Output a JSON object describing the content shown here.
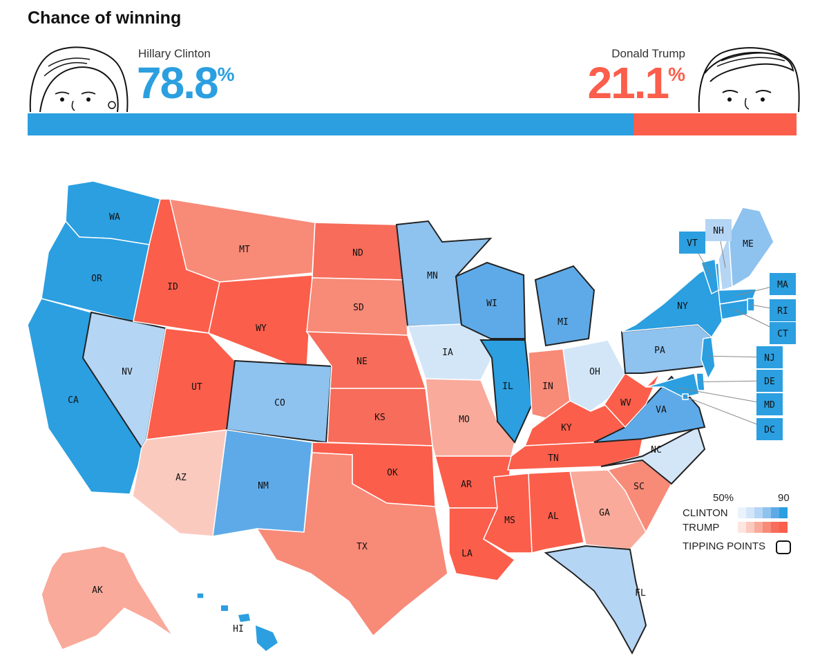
{
  "header": {
    "title": "Chance of winning"
  },
  "candidates": {
    "clinton": {
      "name": "Hillary Clinton",
      "pct": "78.8",
      "pct_sign": "%",
      "share": 0.788,
      "color": "#2b9fe0"
    },
    "trump": {
      "name": "Donald Trump",
      "pct": "21.1",
      "pct_sign": "%",
      "share": 0.211,
      "color": "#fb5e4b"
    }
  },
  "legend": {
    "tick_low": "50%",
    "tick_high": "90",
    "clinton_label": "CLINTON",
    "trump_label": "TRUMP",
    "tipping_label": "TIPPING POINTS",
    "clinton_scale": [
      "#eaf3fc",
      "#d3e6f8",
      "#b5d5f4",
      "#8ec2ef",
      "#5eaae8",
      "#2b9fe0"
    ],
    "trump_scale": [
      "#fde5e0",
      "#fbcabf",
      "#f9aa9b",
      "#f88a78",
      "#f76c5a",
      "#fb5e4b"
    ]
  },
  "states": [
    {
      "abbr": "WA",
      "shade": "c5"
    },
    {
      "abbr": "OR",
      "shade": "c5"
    },
    {
      "abbr": "CA",
      "shade": "c5"
    },
    {
      "abbr": "NV",
      "shade": "c2",
      "tipping": true
    },
    {
      "abbr": "ID",
      "shade": "t5"
    },
    {
      "abbr": "MT",
      "shade": "t3"
    },
    {
      "abbr": "WY",
      "shade": "t5"
    },
    {
      "abbr": "UT",
      "shade": "t5"
    },
    {
      "abbr": "AZ",
      "shade": "t1"
    },
    {
      "abbr": "CO",
      "shade": "c3",
      "tipping": true
    },
    {
      "abbr": "NM",
      "shade": "c4"
    },
    {
      "abbr": "ND",
      "shade": "t4"
    },
    {
      "abbr": "SD",
      "shade": "t3"
    },
    {
      "abbr": "NE",
      "shade": "t4"
    },
    {
      "abbr": "KS",
      "shade": "t4"
    },
    {
      "abbr": "OK",
      "shade": "t5"
    },
    {
      "abbr": "TX",
      "shade": "t3"
    },
    {
      "abbr": "MN",
      "shade": "c3",
      "tipping": true
    },
    {
      "abbr": "IA",
      "shade": "c1"
    },
    {
      "abbr": "MO",
      "shade": "t2"
    },
    {
      "abbr": "AR",
      "shade": "t5"
    },
    {
      "abbr": "LA",
      "shade": "t5"
    },
    {
      "abbr": "WI",
      "shade": "c4",
      "tipping": true
    },
    {
      "abbr": "IL",
      "shade": "c5",
      "tipping": true
    },
    {
      "abbr": "MI",
      "shade": "c4",
      "tipping": true
    },
    {
      "abbr": "IN",
      "shade": "t3"
    },
    {
      "abbr": "OH",
      "shade": "c1"
    },
    {
      "abbr": "KY",
      "shade": "t5"
    },
    {
      "abbr": "TN",
      "shade": "t5"
    },
    {
      "abbr": "MS",
      "shade": "t5"
    },
    {
      "abbr": "AL",
      "shade": "t5"
    },
    {
      "abbr": "GA",
      "shade": "t2"
    },
    {
      "abbr": "FL",
      "shade": "c2",
      "tipping": true
    },
    {
      "abbr": "SC",
      "shade": "t3"
    },
    {
      "abbr": "NC",
      "shade": "c1",
      "tipping": true
    },
    {
      "abbr": "VA",
      "shade": "c4",
      "tipping": true
    },
    {
      "abbr": "WV",
      "shade": "t5"
    },
    {
      "abbr": "PA",
      "shade": "c3",
      "tipping": true
    },
    {
      "abbr": "NY",
      "shade": "c5"
    },
    {
      "abbr": "VT",
      "shade": "c5"
    },
    {
      "abbr": "NH",
      "shade": "c2"
    },
    {
      "abbr": "ME",
      "shade": "c3"
    },
    {
      "abbr": "MA",
      "shade": "c5"
    },
    {
      "abbr": "RI",
      "shade": "c5"
    },
    {
      "abbr": "CT",
      "shade": "c5"
    },
    {
      "abbr": "NJ",
      "shade": "c5"
    },
    {
      "abbr": "DE",
      "shade": "c5"
    },
    {
      "abbr": "MD",
      "shade": "c5"
    },
    {
      "abbr": "DC",
      "shade": "c5"
    },
    {
      "abbr": "AK",
      "shade": "t2"
    },
    {
      "abbr": "HI",
      "shade": "c5"
    }
  ]
}
